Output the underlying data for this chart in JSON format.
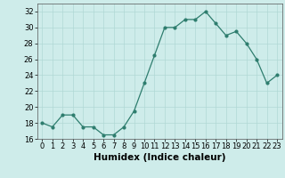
{
  "x": [
    0,
    1,
    2,
    3,
    4,
    5,
    6,
    7,
    8,
    9,
    10,
    11,
    12,
    13,
    14,
    15,
    16,
    17,
    18,
    19,
    20,
    21,
    22,
    23
  ],
  "y": [
    18,
    17.5,
    19,
    19,
    17.5,
    17.5,
    16.5,
    16.5,
    17.5,
    19.5,
    23,
    26.5,
    30,
    30,
    31,
    31,
    32,
    30.5,
    29,
    29.5,
    28,
    26,
    23,
    24
  ],
  "line_color": "#2e7d6e",
  "marker": "o",
  "marker_size": 2,
  "bg_color": "#ceecea",
  "grid_color": "#b0d8d5",
  "xlabel": "Humidex (Indice chaleur)",
  "ylim": [
    16,
    33
  ],
  "xlim": [
    -0.5,
    23.5
  ],
  "yticks": [
    16,
    18,
    20,
    22,
    24,
    26,
    28,
    30,
    32
  ],
  "xtick_labels": [
    "0",
    "1",
    "2",
    "3",
    "4",
    "5",
    "6",
    "7",
    "8",
    "9",
    "10",
    "11",
    "12",
    "13",
    "14",
    "15",
    "16",
    "17",
    "18",
    "19",
    "20",
    "21",
    "22",
    "23"
  ],
  "tick_fontsize": 6,
  "xlabel_fontsize": 7.5
}
